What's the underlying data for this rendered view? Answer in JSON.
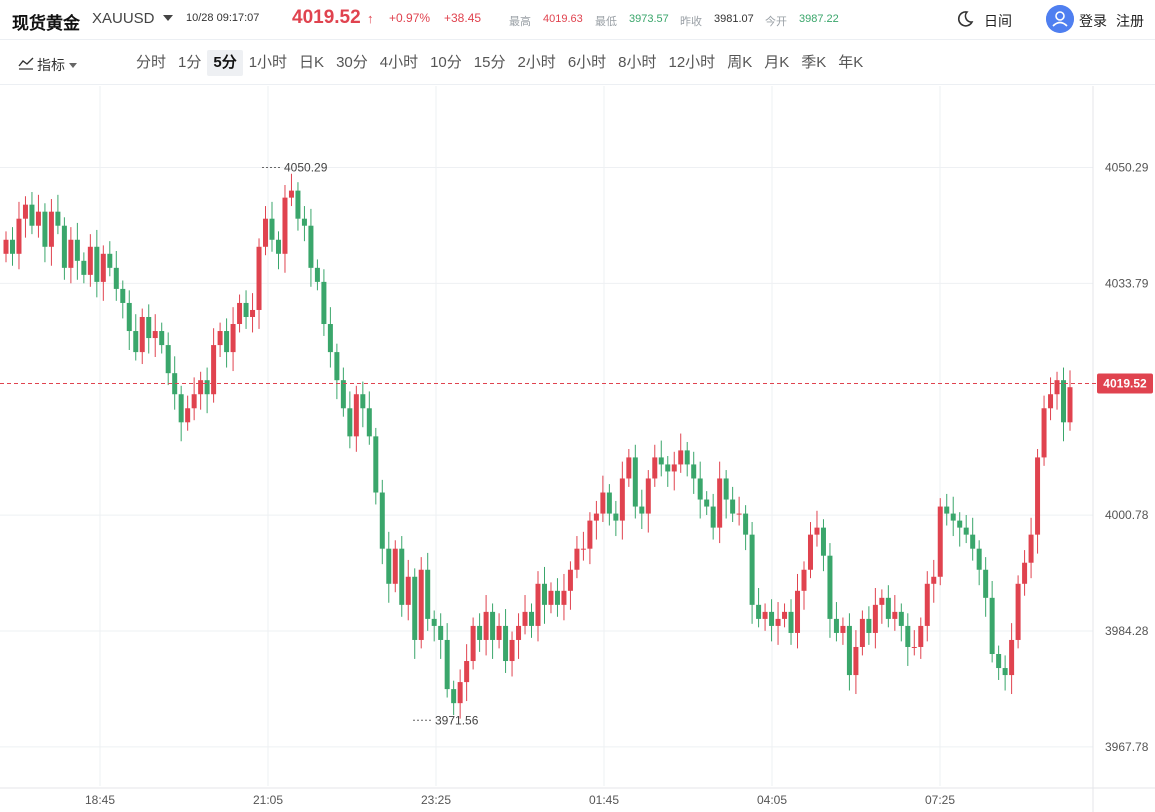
{
  "header": {
    "title": "现货黄金",
    "symbol": "XAUUSD",
    "datetime": "10/28 09:17:07",
    "price": "4019.52",
    "change_pct": "+0.97%",
    "change": "+38.45",
    "stats": [
      {
        "label": "最高",
        "value": "4019.63",
        "color": "#e0434f"
      },
      {
        "label": "最低",
        "value": "3973.57",
        "color": "#3aa66b"
      },
      {
        "label": "昨收",
        "value": "3981.07",
        "color": "#333333"
      },
      {
        "label": "今开",
        "value": "3987.22",
        "color": "#3aa66b"
      }
    ],
    "theme_label": "日间",
    "login_label": "登录",
    "register_label": "注册"
  },
  "toolbar": {
    "indicator_label": "指标",
    "periods": [
      "分时",
      "1分",
      "5分",
      "1小时",
      "日K",
      "30分",
      "4小时",
      "10分",
      "15分",
      "2小时",
      "6小时",
      "8小时",
      "12小时",
      "周K",
      "月K",
      "季K",
      "年K"
    ],
    "active_period": "5分"
  },
  "colors": {
    "up": "#e0434f",
    "down": "#3aa66b",
    "accent": "#4f7ff0"
  },
  "chart_data": {
    "type": "candlestick",
    "ylim": [
      3962.2,
      4061.9
    ],
    "y_ticks": [
      "4050.29",
      "4033.79",
      "4000.78",
      "3984.28",
      "3967.78"
    ],
    "x_ticks": [
      "18:45",
      "21:05",
      "23:25",
      "01:45",
      "04:05",
      "07:25"
    ],
    "last_price": "4019.52",
    "high_marker": "4050.29",
    "low_marker": "3971.56",
    "closes": [
      4040,
      4038,
      4043,
      4045,
      4042,
      4044,
      4039,
      4044,
      4042,
      4036,
      4040,
      4037,
      4035,
      4039,
      4034,
      4038,
      4036,
      4033,
      4031,
      4027,
      4024,
      4029,
      4026,
      4027,
      4025,
      4021,
      4018,
      4014,
      4016,
      4018,
      4020,
      4018,
      4025,
      4027,
      4024,
      4028,
      4031,
      4029,
      4030,
      4039,
      4043,
      4040,
      4038,
      4046,
      4047,
      4043,
      4042,
      4036,
      4034,
      4028,
      4024,
      4020,
      4016,
      4012,
      4018,
      4016,
      4012,
      4004,
      3996,
      3991,
      3996,
      3988,
      3992,
      3983,
      3993,
      3986,
      3985,
      3983,
      3976,
      3974,
      3977,
      3980,
      3985,
      3983,
      3987,
      3983,
      3985,
      3980,
      3983,
      3985,
      3987,
      3985,
      3991,
      3988,
      3990,
      3988,
      3990,
      3993,
      3996,
      3996,
      4000,
      4001,
      4004,
      4001,
      4000,
      4006,
      4009,
      4002,
      4001,
      4006,
      4009,
      4008,
      4007,
      4008,
      4010,
      4008,
      4006,
      4003,
      4002,
      3999,
      4006,
      4003,
      4001,
      4001,
      3998,
      3988,
      3986,
      3987,
      3985,
      3986,
      3987,
      3984,
      3990,
      3993,
      3998,
      3999,
      3995,
      3986,
      3984,
      3985,
      3978,
      3982,
      3986,
      3984,
      3988,
      3989,
      3986,
      3987,
      3985,
      3982,
      3982,
      3985,
      3991,
      3992,
      4002,
      4001,
      4000,
      3999,
      3998,
      3996,
      3993,
      3989,
      3981,
      3979,
      3978,
      3983,
      3991,
      3994,
      3998,
      4009,
      4016,
      4018,
      4020,
      4014,
      4019
    ],
    "opens": [
      4038,
      4040,
      4038,
      4043,
      4045,
      4042,
      4044,
      4039,
      4044,
      4042,
      4036,
      4040,
      4037,
      4035,
      4039,
      4034,
      4038,
      4036,
      4033,
      4031,
      4027,
      4024,
      4029,
      4026,
      4027,
      4025,
      4021,
      4018,
      4014,
      4016,
      4018,
      4020,
      4018,
      4025,
      4027,
      4024,
      4028,
      4031,
      4029,
      4030,
      4039,
      4043,
      4040,
      4038,
      4046,
      4047,
      4043,
      4042,
      4036,
      4034,
      4028,
      4024,
      4020,
      4016,
      4012,
      4018,
      4016,
      4012,
      4004,
      3996,
      3991,
      3996,
      3988,
      3992,
      3983,
      3993,
      3986,
      3985,
      3983,
      3976,
      3974,
      3977,
      3980,
      3985,
      3983,
      3987,
      3983,
      3985,
      3980,
      3983,
      3985,
      3987,
      3985,
      3991,
      3988,
      3990,
      3988,
      3990,
      3993,
      3996,
      3996,
      4000,
      4001,
      4004,
      4001,
      4000,
      4006,
      4009,
      4002,
      4001,
      4006,
      4009,
      4008,
      4007,
      4008,
      4010,
      4008,
      4006,
      4003,
      4002,
      3999,
      4006,
      4003,
      4001,
      4001,
      3998,
      3988,
      3986,
      3987,
      3985,
      3986,
      3987,
      3984,
      3990,
      3993,
      3998,
      3999,
      3995,
      3986,
      3984,
      3985,
      3978,
      3982,
      3986,
      3984,
      3988,
      3989,
      3986,
      3987,
      3985,
      3982,
      3982,
      3985,
      3991,
      3992,
      4002,
      4001,
      4000,
      3999,
      3998,
      3996,
      3993,
      3989,
      3981,
      3979,
      3978,
      3983,
      3991,
      3994,
      3998,
      4009,
      4016,
      4018,
      4020,
      4014
    ]
  }
}
